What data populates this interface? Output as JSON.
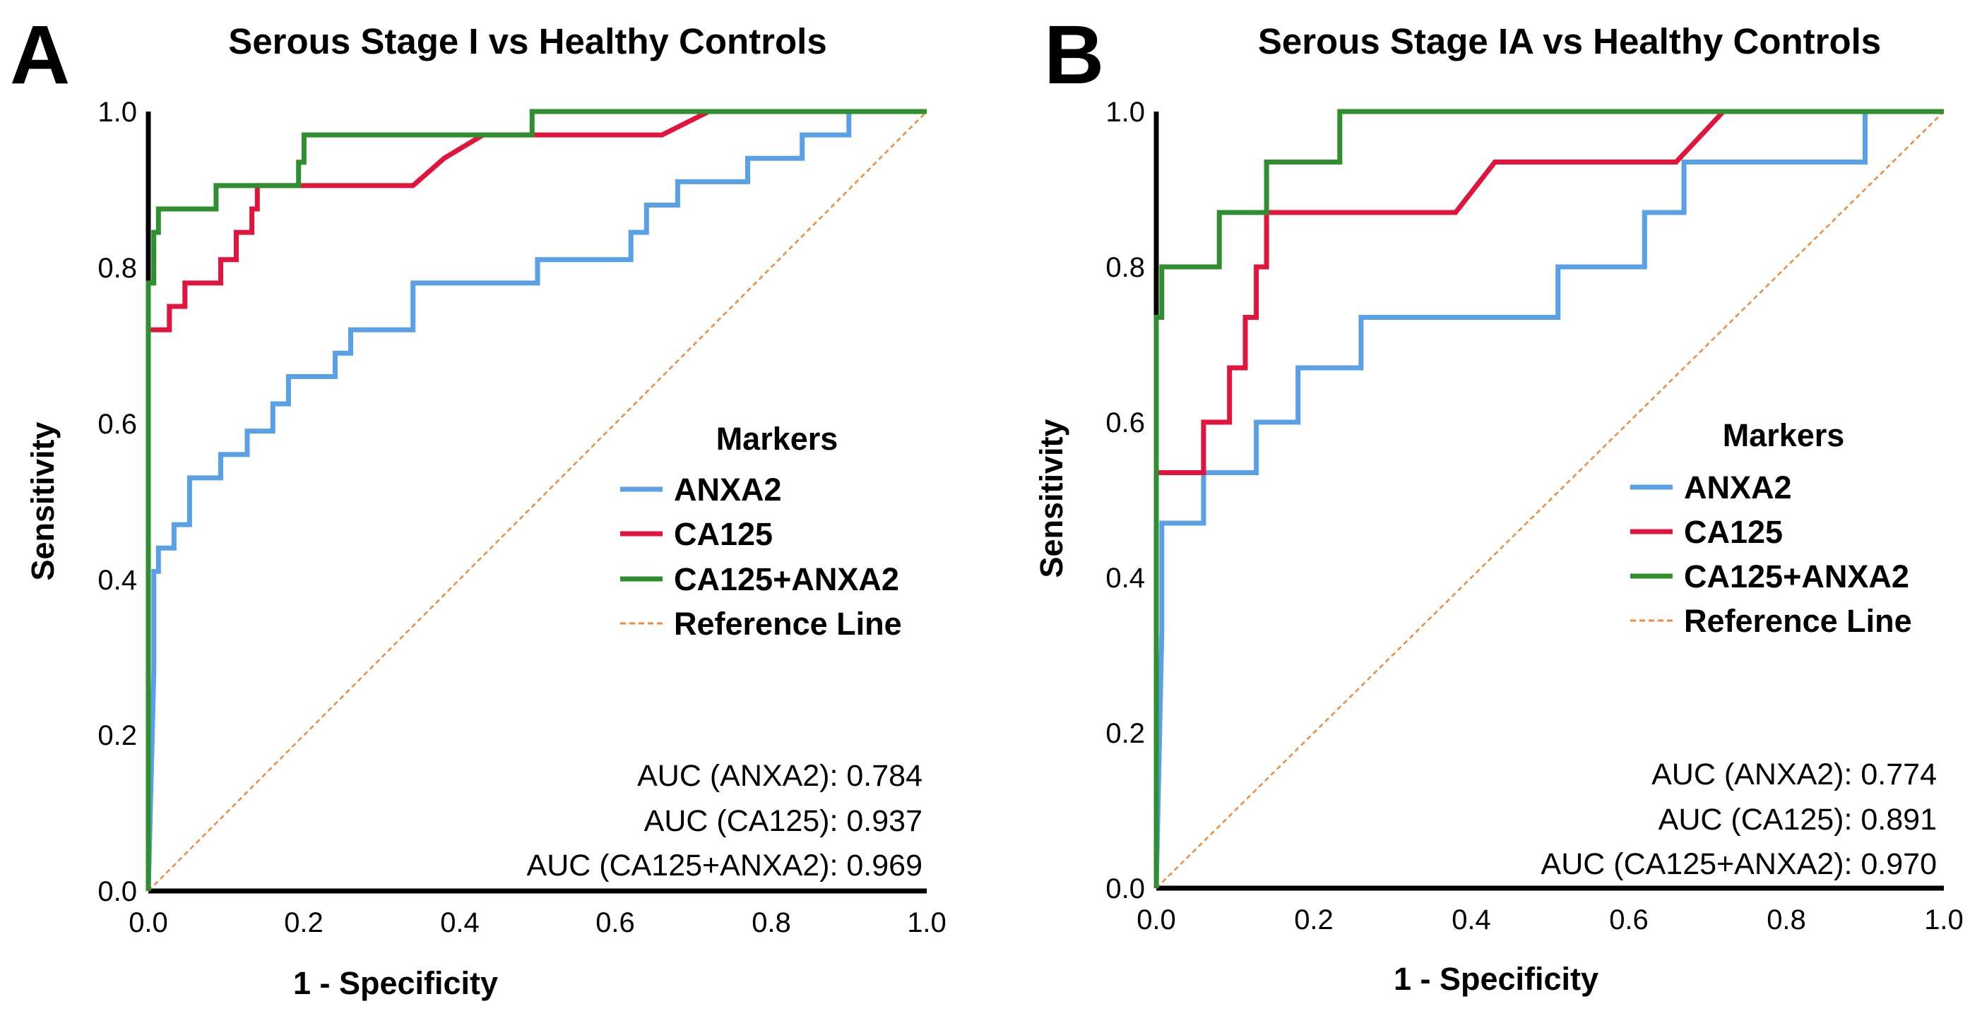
{
  "chart_data": [
    {
      "type": "line",
      "panel_letter": "A",
      "title": "Serous Stage I vs Healthy Controls",
      "xlabel": "1 - Specificity",
      "ylabel": "Sensitivity",
      "xlim": [
        0,
        1
      ],
      "ylim": [
        0,
        1
      ],
      "x_ticks": [
        "0.0",
        "0.2",
        "0.4",
        "0.6",
        "0.8",
        "1.0"
      ],
      "y_ticks": [
        "0.0",
        "0.2",
        "0.4",
        "0.6",
        "0.8",
        "1.0"
      ],
      "legend_title": "Markers",
      "legend_position": "right",
      "series": [
        {
          "name": "ANXA2",
          "color": "#5aa0e6",
          "points": [
            [
              0,
              0
            ],
            [
              0.007,
              0.28
            ],
            [
              0.007,
              0.41
            ],
            [
              0.013,
              0.41
            ],
            [
              0.013,
              0.44
            ],
            [
              0.033,
              0.44
            ],
            [
              0.033,
              0.47
            ],
            [
              0.053,
              0.47
            ],
            [
              0.053,
              0.53
            ],
            [
              0.093,
              0.53
            ],
            [
              0.093,
              0.56
            ],
            [
              0.127,
              0.56
            ],
            [
              0.127,
              0.59
            ],
            [
              0.16,
              0.59
            ],
            [
              0.16,
              0.625
            ],
            [
              0.18,
              0.625
            ],
            [
              0.18,
              0.66
            ],
            [
              0.24,
              0.66
            ],
            [
              0.24,
              0.69
            ],
            [
              0.26,
              0.69
            ],
            [
              0.26,
              0.72
            ],
            [
              0.34,
              0.72
            ],
            [
              0.34,
              0.78
            ],
            [
              0.5,
              0.78
            ],
            [
              0.5,
              0.81
            ],
            [
              0.62,
              0.81
            ],
            [
              0.62,
              0.845
            ],
            [
              0.64,
              0.845
            ],
            [
              0.64,
              0.88
            ],
            [
              0.68,
              0.88
            ],
            [
              0.68,
              0.91
            ],
            [
              0.77,
              0.91
            ],
            [
              0.77,
              0.94
            ],
            [
              0.84,
              0.94
            ],
            [
              0.84,
              0.97
            ],
            [
              0.9,
              0.97
            ],
            [
              0.9,
              1
            ],
            [
              1,
              1
            ]
          ]
        },
        {
          "name": "CA125",
          "color": "#e0143c",
          "points": [
            [
              0,
              0
            ],
            [
              0,
              0.72
            ],
            [
              0.027,
              0.72
            ],
            [
              0.027,
              0.75
            ],
            [
              0.047,
              0.75
            ],
            [
              0.047,
              0.78
            ],
            [
              0.093,
              0.78
            ],
            [
              0.093,
              0.81
            ],
            [
              0.113,
              0.81
            ],
            [
              0.113,
              0.845
            ],
            [
              0.133,
              0.845
            ],
            [
              0.133,
              0.875
            ],
            [
              0.14,
              0.875
            ],
            [
              0.14,
              0.905
            ],
            [
              0.34,
              0.905
            ],
            [
              0.38,
              0.94
            ],
            [
              0.43,
              0.97
            ],
            [
              0.66,
              0.97
            ],
            [
              0.72,
              1
            ],
            [
              1,
              1
            ]
          ]
        },
        {
          "name": "CA125+ANXA2",
          "color": "#2f8f2f",
          "points": [
            [
              0,
              0
            ],
            [
              0,
              0.78
            ],
            [
              0.007,
              0.78
            ],
            [
              0.007,
              0.845
            ],
            [
              0.013,
              0.845
            ],
            [
              0.013,
              0.875
            ],
            [
              0.087,
              0.875
            ],
            [
              0.087,
              0.905
            ],
            [
              0.193,
              0.905
            ],
            [
              0.193,
              0.935
            ],
            [
              0.2,
              0.935
            ],
            [
              0.2,
              0.97
            ],
            [
              0.493,
              0.97
            ],
            [
              0.493,
              1
            ],
            [
              1,
              1
            ]
          ]
        },
        {
          "name": "Reference Line",
          "color": "#f08a3c",
          "dashed": true,
          "points": [
            [
              0,
              0
            ],
            [
              1,
              1
            ]
          ]
        }
      ],
      "annotations": [
        "AUC (ANXA2): 0.784",
        "AUC (CA125): 0.937",
        "AUC (CA125+ANXA2): 0.969"
      ]
    },
    {
      "type": "line",
      "panel_letter": "B",
      "title": "Serous Stage IA vs Healthy Controls",
      "xlabel": "1 - Specificity",
      "ylabel": "Sensitivity",
      "xlim": [
        0,
        1
      ],
      "ylim": [
        0,
        1
      ],
      "x_ticks": [
        "0.0",
        "0.2",
        "0.4",
        "0.6",
        "0.8",
        "1.0"
      ],
      "y_ticks": [
        "0.0",
        "0.2",
        "0.4",
        "0.6",
        "0.8",
        "1.0"
      ],
      "legend_title": "Markers",
      "legend_position": "right",
      "series": [
        {
          "name": "ANXA2",
          "color": "#5aa0e6",
          "points": [
            [
              0,
              0
            ],
            [
              0.007,
              0.33
            ],
            [
              0.007,
              0.47
            ],
            [
              0.06,
              0.47
            ],
            [
              0.06,
              0.535
            ],
            [
              0.087,
              0.535
            ],
            [
              0.087,
              0.535
            ],
            [
              0.127,
              0.535
            ],
            [
              0.127,
              0.6
            ],
            [
              0.153,
              0.6
            ],
            [
              0.153,
              0.6
            ],
            [
              0.18,
              0.6
            ],
            [
              0.18,
              0.67
            ],
            [
              0.2,
              0.67
            ],
            [
              0.2,
              0.67
            ],
            [
              0.26,
              0.67
            ],
            [
              0.26,
              0.735
            ],
            [
              0.51,
              0.735
            ],
            [
              0.51,
              0.8
            ],
            [
              0.62,
              0.8
            ],
            [
              0.62,
              0.87
            ],
            [
              0.67,
              0.87
            ],
            [
              0.67,
              0.935
            ],
            [
              0.9,
              0.935
            ],
            [
              0.9,
              1
            ],
            [
              1,
              1
            ]
          ]
        },
        {
          "name": "CA125",
          "color": "#e0143c",
          "points": [
            [
              0,
              0
            ],
            [
              0,
              0.535
            ],
            [
              0.06,
              0.535
            ],
            [
              0.06,
              0.6
            ],
            [
              0.093,
              0.6
            ],
            [
              0.093,
              0.67
            ],
            [
              0.113,
              0.67
            ],
            [
              0.113,
              0.735
            ],
            [
              0.127,
              0.735
            ],
            [
              0.127,
              0.8
            ],
            [
              0.14,
              0.8
            ],
            [
              0.14,
              0.87
            ],
            [
              0.38,
              0.87
            ],
            [
              0.43,
              0.935
            ],
            [
              0.66,
              0.935
            ],
            [
              0.72,
              1
            ],
            [
              1,
              1
            ]
          ]
        },
        {
          "name": "CA125+ANXA2",
          "color": "#2f8f2f",
          "points": [
            [
              0,
              0
            ],
            [
              0,
              0.735
            ],
            [
              0.007,
              0.735
            ],
            [
              0.007,
              0.8
            ],
            [
              0.08,
              0.8
            ],
            [
              0.08,
              0.87
            ],
            [
              0.14,
              0.87
            ],
            [
              0.14,
              0.935
            ],
            [
              0.233,
              0.935
            ],
            [
              0.233,
              1
            ],
            [
              1,
              1
            ]
          ]
        },
        {
          "name": "Reference Line",
          "color": "#f08a3c",
          "dashed": true,
          "points": [
            [
              0,
              0
            ],
            [
              1,
              1
            ]
          ]
        }
      ],
      "annotations": [
        "AUC (ANXA2): 0.774",
        "AUC (CA125): 0.891",
        "AUC (CA125+ANXA2): 0.970"
      ]
    }
  ]
}
